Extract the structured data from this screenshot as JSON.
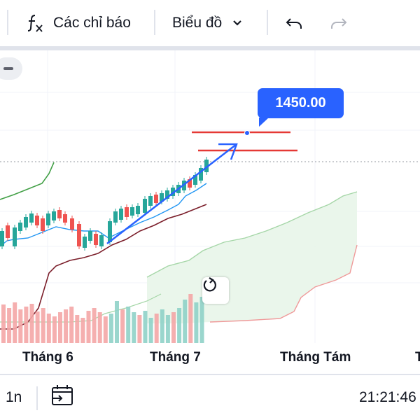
{
  "toolbar": {
    "indicators_icon": "function-fx-icon",
    "indicators_label": "Các chỉ báo",
    "chart_type_label": "Biểu đồ",
    "chevron_icon": "chevron-down-icon",
    "undo_icon": "undo-icon",
    "redo_icon": "redo-icon"
  },
  "chart": {
    "price_label": "1450.00",
    "x_labels": [
      "Tháng 6",
      "Tháng 7",
      "Tháng Tám"
    ],
    "zoom_icon": "minus-icon",
    "reset_icon": "reset-rotate-icon"
  },
  "bottom": {
    "interval": "1n",
    "date_range_icon": "calendar-goto-icon",
    "time": "21:21:46"
  },
  "colors": {
    "accent": "#2962ff",
    "up": "#26a69a",
    "down": "#ef5350",
    "cloud": "#e8f5e9",
    "lagging": "#4caf50",
    "base": "#7b1e2a",
    "conversion": "#2196f3",
    "horizontal_line": "#e53935"
  }
}
